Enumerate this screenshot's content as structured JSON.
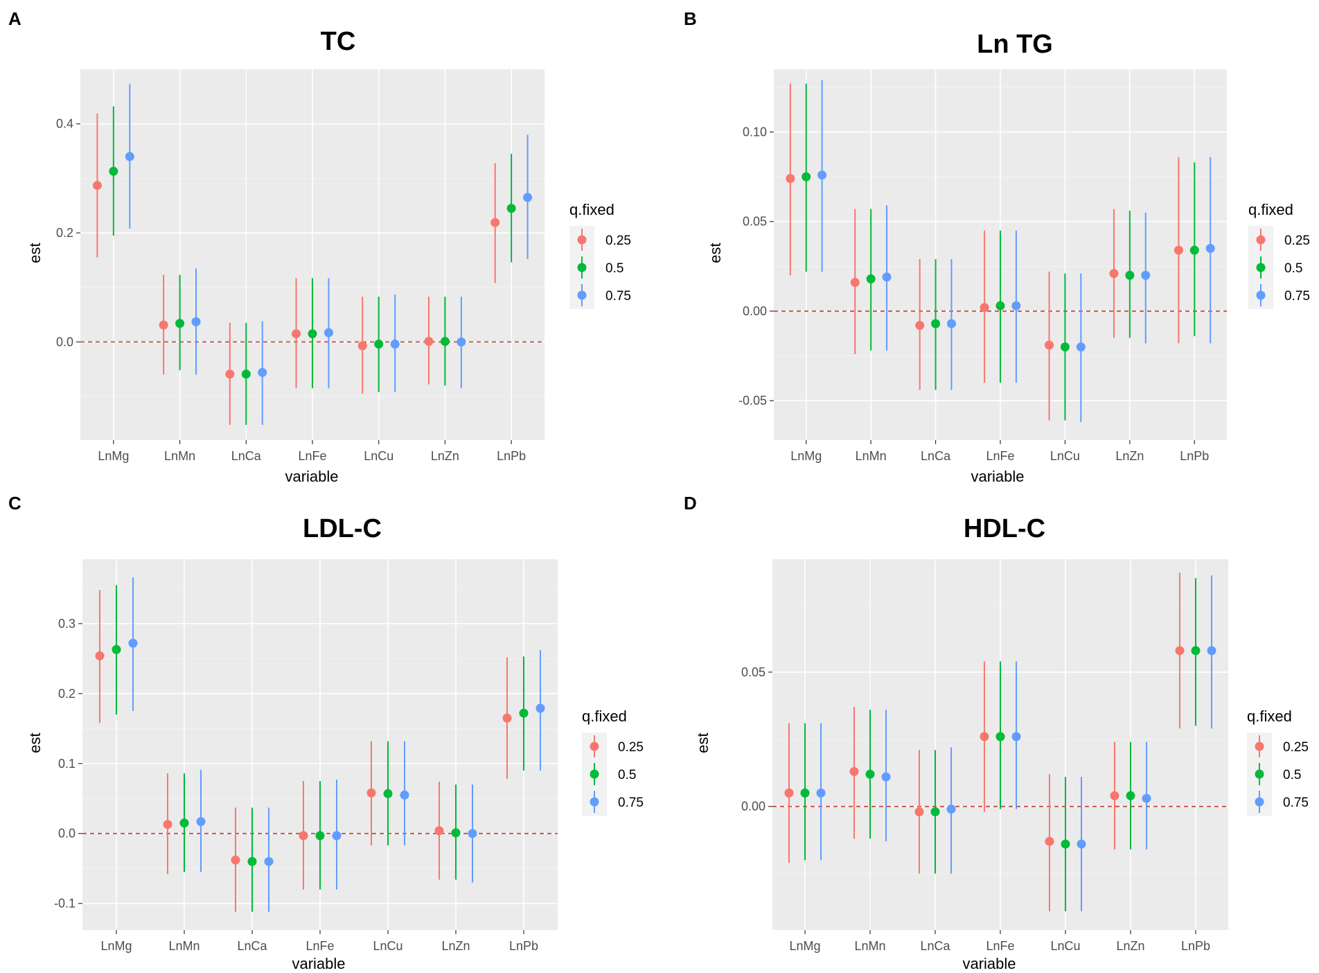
{
  "chart_data": [
    {
      "panel": "A",
      "type": "scatter",
      "title": "TC",
      "xlabel": "variable",
      "ylabel": "est",
      "ylim": [
        -0.18,
        0.5
      ],
      "yticks": [
        0.0,
        0.2,
        0.4
      ],
      "ytick_labels": [
        "0.0",
        "0.2",
        "0.4"
      ],
      "categories": [
        "LnMg",
        "LnMn",
        "LnCa",
        "LnFe",
        "LnCu",
        "LnZn",
        "LnPb"
      ],
      "reference_line": 0,
      "legend_title": "q.fixed",
      "series": [
        {
          "name": "0.25",
          "color": "#f8766d",
          "est": [
            0.287,
            0.031,
            -0.059,
            0.015,
            -0.007,
            0.001,
            0.219
          ],
          "lower": [
            0.155,
            -0.06,
            -0.152,
            -0.085,
            -0.095,
            -0.078,
            0.108
          ],
          "upper": [
            0.419,
            0.123,
            0.035,
            0.117,
            0.083,
            0.083,
            0.328
          ]
        },
        {
          "name": "0.5",
          "color": "#00ba38",
          "est": [
            0.313,
            0.034,
            -0.059,
            0.015,
            -0.004,
            0.001,
            0.245
          ],
          "lower": [
            0.195,
            -0.052,
            -0.152,
            -0.085,
            -0.092,
            -0.08,
            0.146
          ],
          "upper": [
            0.432,
            0.123,
            0.035,
            0.117,
            0.083,
            0.083,
            0.345
          ]
        },
        {
          "name": "0.75",
          "color": "#619cff",
          "est": [
            0.34,
            0.037,
            -0.056,
            0.017,
            -0.004,
            0.0,
            0.265
          ],
          "lower": [
            0.208,
            -0.06,
            -0.152,
            -0.085,
            -0.092,
            -0.085,
            0.152
          ],
          "upper": [
            0.473,
            0.135,
            0.038,
            0.117,
            0.087,
            0.083,
            0.38
          ]
        }
      ]
    },
    {
      "panel": "B",
      "type": "scatter",
      "title": "Ln TG",
      "xlabel": "variable",
      "ylabel": "est",
      "ylim": [
        -0.072,
        0.135
      ],
      "yticks": [
        -0.05,
        0.0,
        0.05,
        0.1
      ],
      "ytick_labels": [
        "-0.05",
        "0.00",
        "0.05",
        "0.10"
      ],
      "categories": [
        "LnMg",
        "LnMn",
        "LnCa",
        "LnFe",
        "LnCu",
        "LnZn",
        "LnPb"
      ],
      "reference_line": 0,
      "legend_title": "q.fixed",
      "series": [
        {
          "name": "0.25",
          "color": "#f8766d",
          "est": [
            0.074,
            0.016,
            -0.008,
            0.002,
            -0.019,
            0.021,
            0.034
          ],
          "lower": [
            0.02,
            -0.024,
            -0.044,
            -0.04,
            -0.061,
            -0.015,
            -0.018
          ],
          "upper": [
            0.127,
            0.057,
            0.029,
            0.045,
            0.022,
            0.057,
            0.086
          ]
        },
        {
          "name": "0.5",
          "color": "#00ba38",
          "est": [
            0.075,
            0.018,
            -0.007,
            0.003,
            -0.02,
            0.02,
            0.034
          ],
          "lower": [
            0.022,
            -0.022,
            -0.044,
            -0.04,
            -0.061,
            -0.015,
            -0.014
          ],
          "upper": [
            0.127,
            0.057,
            0.029,
            0.045,
            0.021,
            0.056,
            0.083
          ]
        },
        {
          "name": "0.75",
          "color": "#619cff",
          "est": [
            0.076,
            0.019,
            -0.007,
            0.003,
            -0.02,
            0.02,
            0.035
          ],
          "lower": [
            0.022,
            -0.022,
            -0.044,
            -0.04,
            -0.062,
            -0.018,
            -0.018
          ],
          "upper": [
            0.129,
            0.059,
            0.029,
            0.045,
            0.021,
            0.055,
            0.086
          ]
        }
      ]
    },
    {
      "panel": "C",
      "type": "scatter",
      "title": "LDL-C",
      "xlabel": "variable",
      "ylabel": "est",
      "ylim": [
        -0.138,
        0.392
      ],
      "yticks": [
        -0.1,
        0.0,
        0.1,
        0.2,
        0.3
      ],
      "ytick_labels": [
        "-0.1",
        "0.0",
        "0.1",
        "0.2",
        "0.3"
      ],
      "categories": [
        "LnMg",
        "LnMn",
        "LnCa",
        "LnFe",
        "LnCu",
        "LnZn",
        "LnPb"
      ],
      "reference_line": 0,
      "legend_title": "q.fixed",
      "series": [
        {
          "name": "0.25",
          "color": "#f8766d",
          "est": [
            0.254,
            0.013,
            -0.038,
            -0.003,
            0.058,
            0.004,
            0.165
          ],
          "lower": [
            0.158,
            -0.058,
            -0.112,
            -0.08,
            -0.017,
            -0.066,
            0.078
          ],
          "upper": [
            0.348,
            0.086,
            0.037,
            0.075,
            0.132,
            0.074,
            0.252
          ]
        },
        {
          "name": "0.5",
          "color": "#00ba38",
          "est": [
            0.263,
            0.015,
            -0.04,
            -0.003,
            0.057,
            0.001,
            0.172
          ],
          "lower": [
            0.17,
            -0.055,
            -0.112,
            -0.08,
            -0.017,
            -0.066,
            0.09
          ],
          "upper": [
            0.355,
            0.086,
            0.037,
            0.075,
            0.132,
            0.07,
            0.253
          ]
        },
        {
          "name": "0.75",
          "color": "#619cff",
          "est": [
            0.272,
            0.017,
            -0.04,
            -0.003,
            0.055,
            0.0,
            0.179
          ],
          "lower": [
            0.175,
            -0.055,
            -0.112,
            -0.08,
            -0.017,
            -0.07,
            0.09
          ],
          "upper": [
            0.366,
            0.091,
            0.037,
            0.077,
            0.132,
            0.07,
            0.262
          ]
        }
      ]
    },
    {
      "panel": "D",
      "type": "scatter",
      "title": "HDL-C",
      "xlabel": "variable",
      "ylabel": "est",
      "ylim": [
        -0.046,
        0.092
      ],
      "yticks": [
        0.0,
        0.05
      ],
      "ytick_labels": [
        "0.00",
        "0.05"
      ],
      "categories": [
        "LnMg",
        "LnMn",
        "LnCa",
        "LnFe",
        "LnCu",
        "LnZn",
        "LnPb"
      ],
      "reference_line": 0,
      "legend_title": "q.fixed",
      "series": [
        {
          "name": "0.25",
          "color": "#f8766d",
          "est": [
            0.005,
            0.013,
            -0.002,
            0.026,
            -0.013,
            0.004,
            0.058
          ],
          "lower": [
            -0.021,
            -0.012,
            -0.025,
            -0.002,
            -0.039,
            -0.016,
            0.029
          ],
          "upper": [
            0.031,
            0.037,
            0.021,
            0.054,
            0.012,
            0.024,
            0.087
          ]
        },
        {
          "name": "0.5",
          "color": "#00ba38",
          "est": [
            0.005,
            0.012,
            -0.002,
            0.026,
            -0.014,
            0.004,
            0.058
          ],
          "lower": [
            -0.02,
            -0.012,
            -0.025,
            -0.001,
            -0.039,
            -0.016,
            0.03
          ],
          "upper": [
            0.031,
            0.036,
            0.021,
            0.054,
            0.011,
            0.024,
            0.085
          ]
        },
        {
          "name": "0.75",
          "color": "#619cff",
          "est": [
            0.005,
            0.011,
            -0.001,
            0.026,
            -0.014,
            0.003,
            0.058
          ],
          "lower": [
            -0.02,
            -0.013,
            -0.025,
            -0.001,
            -0.039,
            -0.016,
            0.029
          ],
          "upper": [
            0.031,
            0.036,
            0.022,
            0.054,
            0.011,
            0.024,
            0.086
          ]
        }
      ]
    }
  ]
}
